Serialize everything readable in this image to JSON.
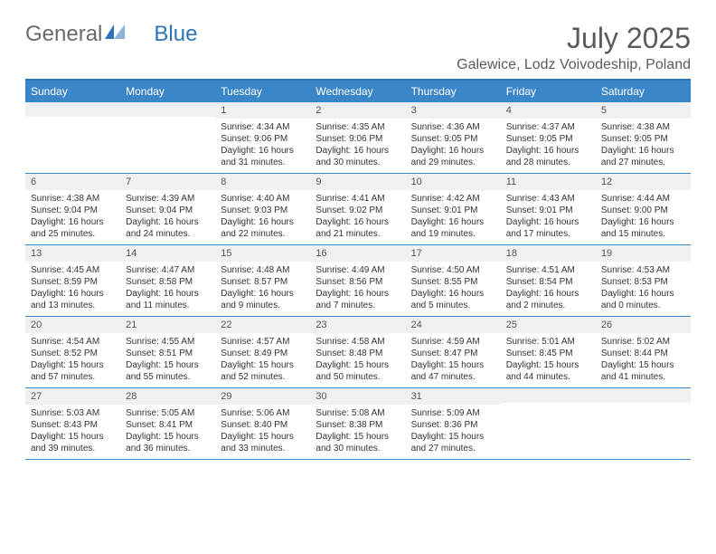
{
  "logo": {
    "general": "General",
    "blue": "Blue"
  },
  "title": "July 2025",
  "location": "Galewice, Lodz Voivodeship, Poland",
  "colors": {
    "header_bg": "#3b86c8",
    "header_text": "#ffffff",
    "border": "#2b74b8",
    "daynum_bg": "#eef0f1",
    "text": "#333333",
    "title_text": "#5a5a5a"
  },
  "day_names": [
    "Sunday",
    "Monday",
    "Tuesday",
    "Wednesday",
    "Thursday",
    "Friday",
    "Saturday"
  ],
  "weeks": [
    [
      {
        "n": "",
        "sr": "",
        "ss": "",
        "dl": ""
      },
      {
        "n": "",
        "sr": "",
        "ss": "",
        "dl": ""
      },
      {
        "n": "1",
        "sr": "4:34 AM",
        "ss": "9:06 PM",
        "dl": "16 hours and 31 minutes."
      },
      {
        "n": "2",
        "sr": "4:35 AM",
        "ss": "9:06 PM",
        "dl": "16 hours and 30 minutes."
      },
      {
        "n": "3",
        "sr": "4:36 AM",
        "ss": "9:05 PM",
        "dl": "16 hours and 29 minutes."
      },
      {
        "n": "4",
        "sr": "4:37 AM",
        "ss": "9:05 PM",
        "dl": "16 hours and 28 minutes."
      },
      {
        "n": "5",
        "sr": "4:38 AM",
        "ss": "9:05 PM",
        "dl": "16 hours and 27 minutes."
      }
    ],
    [
      {
        "n": "6",
        "sr": "4:38 AM",
        "ss": "9:04 PM",
        "dl": "16 hours and 25 minutes."
      },
      {
        "n": "7",
        "sr": "4:39 AM",
        "ss": "9:04 PM",
        "dl": "16 hours and 24 minutes."
      },
      {
        "n": "8",
        "sr": "4:40 AM",
        "ss": "9:03 PM",
        "dl": "16 hours and 22 minutes."
      },
      {
        "n": "9",
        "sr": "4:41 AM",
        "ss": "9:02 PM",
        "dl": "16 hours and 21 minutes."
      },
      {
        "n": "10",
        "sr": "4:42 AM",
        "ss": "9:01 PM",
        "dl": "16 hours and 19 minutes."
      },
      {
        "n": "11",
        "sr": "4:43 AM",
        "ss": "9:01 PM",
        "dl": "16 hours and 17 minutes."
      },
      {
        "n": "12",
        "sr": "4:44 AM",
        "ss": "9:00 PM",
        "dl": "16 hours and 15 minutes."
      }
    ],
    [
      {
        "n": "13",
        "sr": "4:45 AM",
        "ss": "8:59 PM",
        "dl": "16 hours and 13 minutes."
      },
      {
        "n": "14",
        "sr": "4:47 AM",
        "ss": "8:58 PM",
        "dl": "16 hours and 11 minutes."
      },
      {
        "n": "15",
        "sr": "4:48 AM",
        "ss": "8:57 PM",
        "dl": "16 hours and 9 minutes."
      },
      {
        "n": "16",
        "sr": "4:49 AM",
        "ss": "8:56 PM",
        "dl": "16 hours and 7 minutes."
      },
      {
        "n": "17",
        "sr": "4:50 AM",
        "ss": "8:55 PM",
        "dl": "16 hours and 5 minutes."
      },
      {
        "n": "18",
        "sr": "4:51 AM",
        "ss": "8:54 PM",
        "dl": "16 hours and 2 minutes."
      },
      {
        "n": "19",
        "sr": "4:53 AM",
        "ss": "8:53 PM",
        "dl": "16 hours and 0 minutes."
      }
    ],
    [
      {
        "n": "20",
        "sr": "4:54 AM",
        "ss": "8:52 PM",
        "dl": "15 hours and 57 minutes."
      },
      {
        "n": "21",
        "sr": "4:55 AM",
        "ss": "8:51 PM",
        "dl": "15 hours and 55 minutes."
      },
      {
        "n": "22",
        "sr": "4:57 AM",
        "ss": "8:49 PM",
        "dl": "15 hours and 52 minutes."
      },
      {
        "n": "23",
        "sr": "4:58 AM",
        "ss": "8:48 PM",
        "dl": "15 hours and 50 minutes."
      },
      {
        "n": "24",
        "sr": "4:59 AM",
        "ss": "8:47 PM",
        "dl": "15 hours and 47 minutes."
      },
      {
        "n": "25",
        "sr": "5:01 AM",
        "ss": "8:45 PM",
        "dl": "15 hours and 44 minutes."
      },
      {
        "n": "26",
        "sr": "5:02 AM",
        "ss": "8:44 PM",
        "dl": "15 hours and 41 minutes."
      }
    ],
    [
      {
        "n": "27",
        "sr": "5:03 AM",
        "ss": "8:43 PM",
        "dl": "15 hours and 39 minutes."
      },
      {
        "n": "28",
        "sr": "5:05 AM",
        "ss": "8:41 PM",
        "dl": "15 hours and 36 minutes."
      },
      {
        "n": "29",
        "sr": "5:06 AM",
        "ss": "8:40 PM",
        "dl": "15 hours and 33 minutes."
      },
      {
        "n": "30",
        "sr": "5:08 AM",
        "ss": "8:38 PM",
        "dl": "15 hours and 30 minutes."
      },
      {
        "n": "31",
        "sr": "5:09 AM",
        "ss": "8:36 PM",
        "dl": "15 hours and 27 minutes."
      },
      {
        "n": "",
        "sr": "",
        "ss": "",
        "dl": ""
      },
      {
        "n": "",
        "sr": "",
        "ss": "",
        "dl": ""
      }
    ]
  ],
  "labels": {
    "sunrise": "Sunrise:",
    "sunset": "Sunset:",
    "daylight": "Daylight:"
  }
}
